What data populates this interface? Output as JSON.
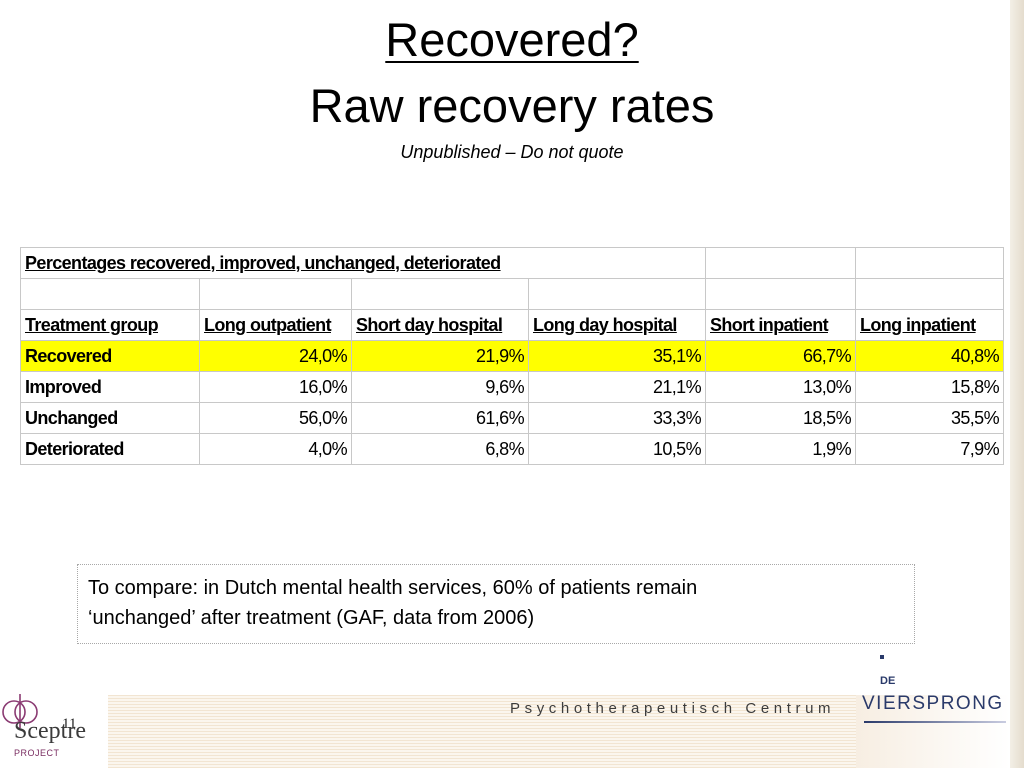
{
  "slide": {
    "title": "Recovered?",
    "subtitle": "Raw recovery rates",
    "notice": "Unpublished – Do not quote",
    "page_number": "11"
  },
  "table": {
    "caption": "Percentages recovered, improved, unchanged, deteriorated",
    "columns": [
      "Treatment group",
      "Long outpatient",
      "Short day hospital",
      "Long day hospital",
      "Short inpatient",
      "Long inpatient"
    ],
    "rows": [
      {
        "label": "Recovered",
        "values": [
          "24,0%",
          "21,9%",
          "35,1%",
          "66,7%",
          "40,8%"
        ],
        "highlight": true
      },
      {
        "label": "Improved",
        "values": [
          "16,0%",
          "9,6%",
          "21,1%",
          "13,0%",
          "15,8%"
        ],
        "highlight": false
      },
      {
        "label": "Unchanged",
        "values": [
          "56,0%",
          "61,6%",
          "33,3%",
          "18,5%",
          "35,5%"
        ],
        "highlight": false
      },
      {
        "label": "Deteriorated",
        "values": [
          "4,0%",
          "6,8%",
          "10,5%",
          "1,9%",
          "7,9%"
        ],
        "highlight": false
      }
    ],
    "highlight_color": "#ffff00"
  },
  "note": {
    "line1": "To compare: in Dutch mental health services, 60% of patients remain",
    "line2": "‘unchanged’ after treatment (GAF, data from 2006)"
  },
  "footer": {
    "centre_name": "Psychotherapeutisch Centrum",
    "left_logo_text": "Sceptre",
    "left_logo_sub": "PROJECT",
    "right_logo_prefix": "DE",
    "right_logo_text": "VIERSPRONG"
  }
}
